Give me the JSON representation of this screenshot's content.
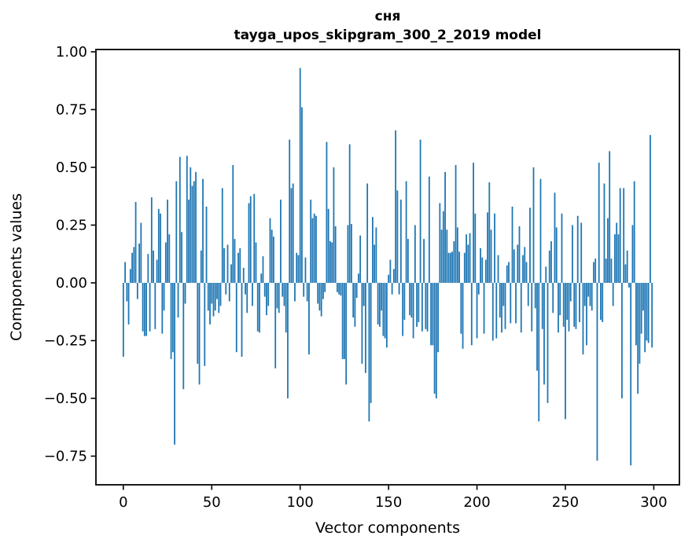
{
  "chart_data": {
    "type": "bar",
    "title": "сня",
    "subtitle": "tayga_upos_skipgram_300_2_2019 model",
    "xlabel": "Vector components",
    "ylabel": "Components values",
    "bar_color": "#1f77b4",
    "axis_color": "#000000",
    "background_color": "#ffffff",
    "grid": "off",
    "legend": "none",
    "xlim": [
      -15.5,
      314.5
    ],
    "ylim": [
      -0.874,
      1.01
    ],
    "x_ticks": [
      {
        "v": 0,
        "label": "0"
      },
      {
        "v": 50,
        "label": "50"
      },
      {
        "v": 100,
        "label": "100"
      },
      {
        "v": 150,
        "label": "150"
      },
      {
        "v": 200,
        "label": "200"
      },
      {
        "v": 250,
        "label": "250"
      },
      {
        "v": 300,
        "label": "300"
      }
    ],
    "y_ticks": [
      {
        "v": 1.0,
        "label": "1.00"
      },
      {
        "v": 0.75,
        "label": "0.75"
      },
      {
        "v": 0.5,
        "label": "0.50"
      },
      {
        "v": 0.25,
        "label": "0.25"
      },
      {
        "v": 0.0,
        "label": "0.00"
      },
      {
        "v": -0.25,
        "label": "−0.25"
      },
      {
        "v": -0.5,
        "label": "−0.50"
      },
      {
        "v": -0.75,
        "label": "−0.75"
      }
    ],
    "x_start": 0,
    "values": [
      -0.32,
      0.09,
      -0.08,
      -0.18,
      0.06,
      0.13,
      0.155,
      0.35,
      -0.07,
      0.17,
      0.26,
      -0.21,
      -0.23,
      -0.23,
      0.125,
      -0.21,
      0.37,
      0.14,
      -0.2,
      0.1,
      0.32,
      0.3,
      -0.22,
      -0.12,
      0.175,
      0.36,
      0.21,
      -0.33,
      -0.3,
      -0.7,
      0.44,
      -0.15,
      0.545,
      0.22,
      -0.46,
      -0.09,
      0.55,
      0.36,
      0.5,
      0.42,
      0.44,
      0.48,
      -0.35,
      -0.44,
      0.14,
      0.45,
      -0.36,
      0.33,
      -0.12,
      -0.18,
      -0.09,
      -0.145,
      -0.12,
      -0.07,
      -0.13,
      -0.1,
      0.41,
      0.15,
      -0.05,
      0.165,
      -0.08,
      0.08,
      0.51,
      0.19,
      -0.3,
      0.13,
      0.15,
      -0.32,
      0.065,
      -0.05,
      -0.13,
      0.345,
      0.375,
      -0.1,
      0.385,
      0.175,
      -0.21,
      -0.215,
      0.04,
      0.115,
      -0.06,
      -0.14,
      -0.1,
      0.28,
      0.23,
      0.2,
      -0.37,
      -0.11,
      -0.13,
      0.36,
      -0.06,
      -0.1,
      -0.215,
      -0.5,
      0.62,
      0.41,
      0.43,
      -0.08,
      0.13,
      0.12,
      0.93,
      0.76,
      -0.06,
      0.11,
      -0.08,
      -0.31,
      0.36,
      0.28,
      0.3,
      0.29,
      -0.09,
      -0.12,
      -0.145,
      -0.07,
      -0.04,
      0.61,
      0.32,
      0.18,
      0.175,
      0.5,
      0.245,
      -0.04,
      -0.05,
      -0.055,
      -0.33,
      -0.33,
      -0.44,
      0.25,
      0.6,
      0.255,
      -0.15,
      -0.19,
      -0.065,
      0.04,
      0.205,
      -0.35,
      -0.1,
      -0.39,
      0.43,
      -0.6,
      -0.52,
      0.285,
      0.165,
      0.24,
      -0.18,
      -0.19,
      -0.12,
      -0.23,
      -0.24,
      -0.28,
      0.035,
      0.1,
      -0.05,
      0.06,
      0.66,
      0.4,
      -0.05,
      0.36,
      -0.23,
      -0.16,
      0.44,
      0.19,
      -0.14,
      -0.15,
      -0.24,
      0.25,
      -0.19,
      -0.17,
      0.62,
      -0.21,
      0.19,
      -0.2,
      -0.21,
      0.46,
      -0.27,
      -0.27,
      -0.48,
      -0.5,
      -0.3,
      0.345,
      0.23,
      0.31,
      0.48,
      0.23,
      0.13,
      0.13,
      0.135,
      0.18,
      0.51,
      0.24,
      0.135,
      -0.22,
      -0.285,
      0.13,
      0.21,
      0.165,
      0.215,
      -0.27,
      0.52,
      0.3,
      -0.24,
      -0.05,
      0.15,
      0.11,
      -0.22,
      0.1,
      0.305,
      0.435,
      0.23,
      -0.25,
      0.3,
      -0.24,
      0.12,
      -0.15,
      -0.215,
      -0.1,
      -0.2,
      0.075,
      0.09,
      -0.175,
      0.33,
      0.145,
      -0.175,
      0.165,
      0.245,
      -0.215,
      0.12,
      0.155,
      0.09,
      -0.1,
      0.325,
      -0.21,
      0.5,
      -0.11,
      -0.38,
      -0.6,
      0.45,
      -0.2,
      -0.44,
      0.07,
      -0.52,
      0.14,
      0.18,
      -0.13,
      0.39,
      0.24,
      -0.215,
      -0.14,
      0.3,
      -0.19,
      -0.59,
      -0.16,
      -0.21,
      -0.08,
      0.25,
      -0.19,
      -0.2,
      0.29,
      -0.17,
      0.26,
      -0.31,
      -0.1,
      -0.27,
      -0.06,
      -0.1,
      -0.12,
      0.09,
      0.105,
      -0.77,
      0.52,
      -0.16,
      -0.17,
      0.43,
      0.105,
      0.28,
      0.57,
      0.105,
      -0.1,
      0.21,
      0.26,
      0.21,
      0.41,
      -0.5,
      0.41,
      0.08,
      0.14,
      -0.02,
      -0.79,
      0.25,
      0.44,
      -0.27,
      -0.48,
      -0.35,
      -0.22,
      -0.12,
      -0.3,
      -0.25,
      -0.26,
      0.64,
      -0.28
    ]
  }
}
